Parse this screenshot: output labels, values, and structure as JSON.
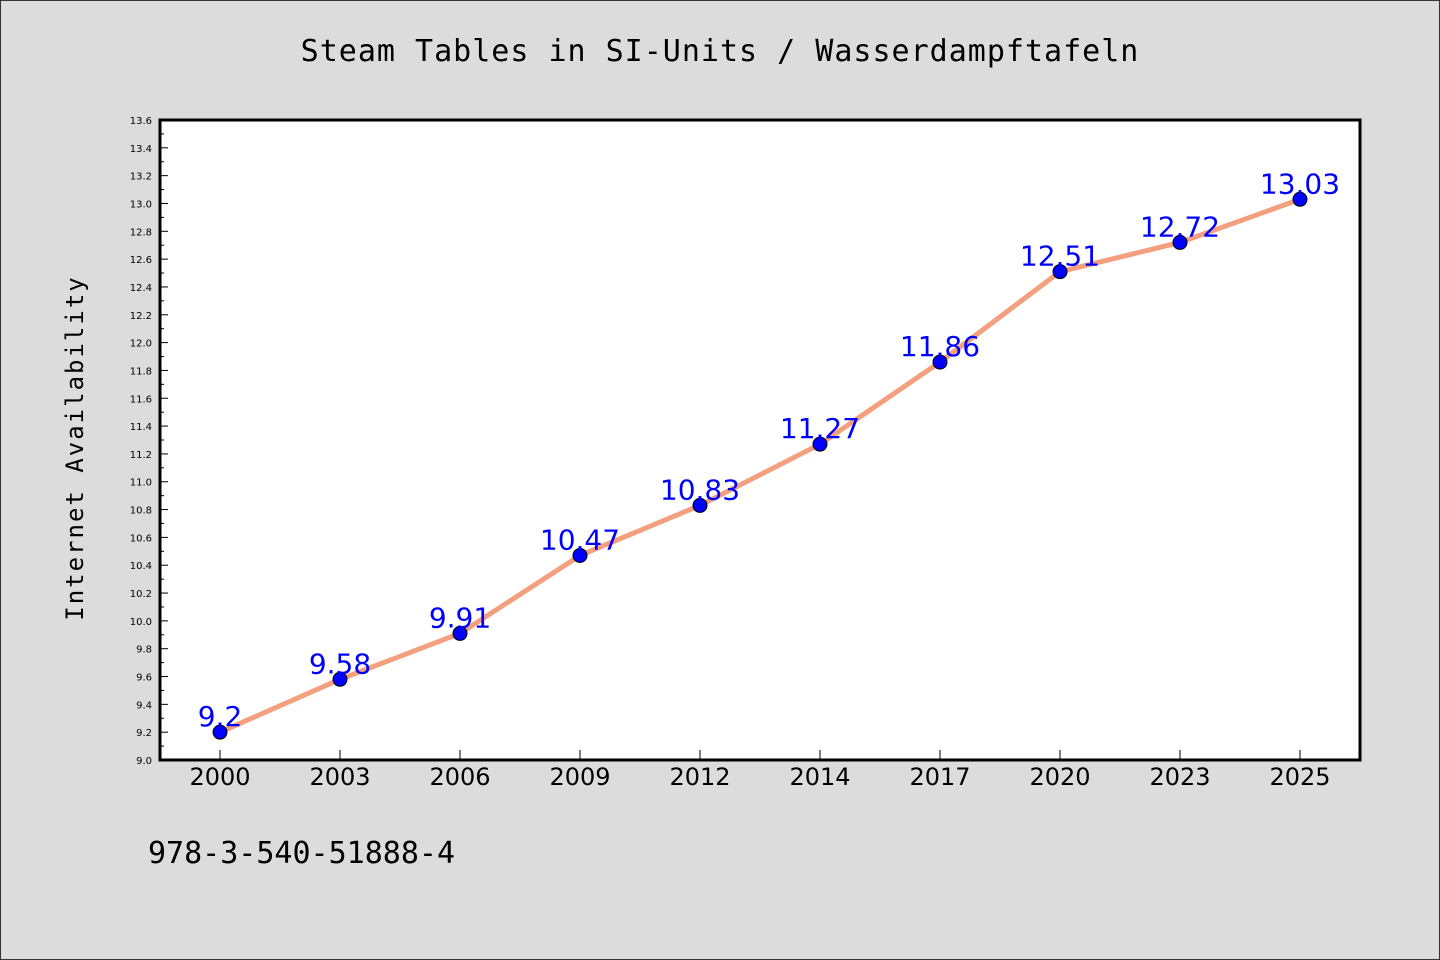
{
  "chart_data": {
    "type": "line",
    "title": "Steam Tables in SI-Units / Wasserdampftafeln",
    "xlabel": "",
    "ylabel": "Internet Availability",
    "categories": [
      "2000",
      "2003",
      "2006",
      "2009",
      "2012",
      "2014",
      "2017",
      "2020",
      "2023",
      "2025"
    ],
    "series": [
      {
        "values": [
          9.2,
          9.58,
          9.91,
          10.47,
          10.83,
          11.27,
          11.86,
          12.51,
          12.72,
          13.03
        ],
        "data_labels": [
          "9.2",
          "9.58",
          "9.91",
          "10.47",
          "10.83",
          "11.27",
          "11.86",
          "12.51",
          "12.72",
          "13.03"
        ],
        "line_color": "#f4a07e",
        "marker_color": "#0000ff",
        "label_color": "#0000ff"
      }
    ],
    "ylim": [
      9.0,
      13.6
    ],
    "yticks": [
      "9.0",
      "9.2",
      "9.4",
      "9.6",
      "9.8",
      "10.0",
      "10.2",
      "10.4",
      "10.6",
      "10.8",
      "11.0",
      "11.2",
      "11.4",
      "11.6",
      "11.8",
      "12.0",
      "12.2",
      "12.4",
      "12.6",
      "12.8",
      "13.0",
      "13.2",
      "13.4",
      "13.6"
    ],
    "grid": false,
    "legend": "none",
    "background_color": "#dcdcdc",
    "plot_background_color": "#ffffff"
  },
  "footer_text": "978-3-540-51888-4"
}
